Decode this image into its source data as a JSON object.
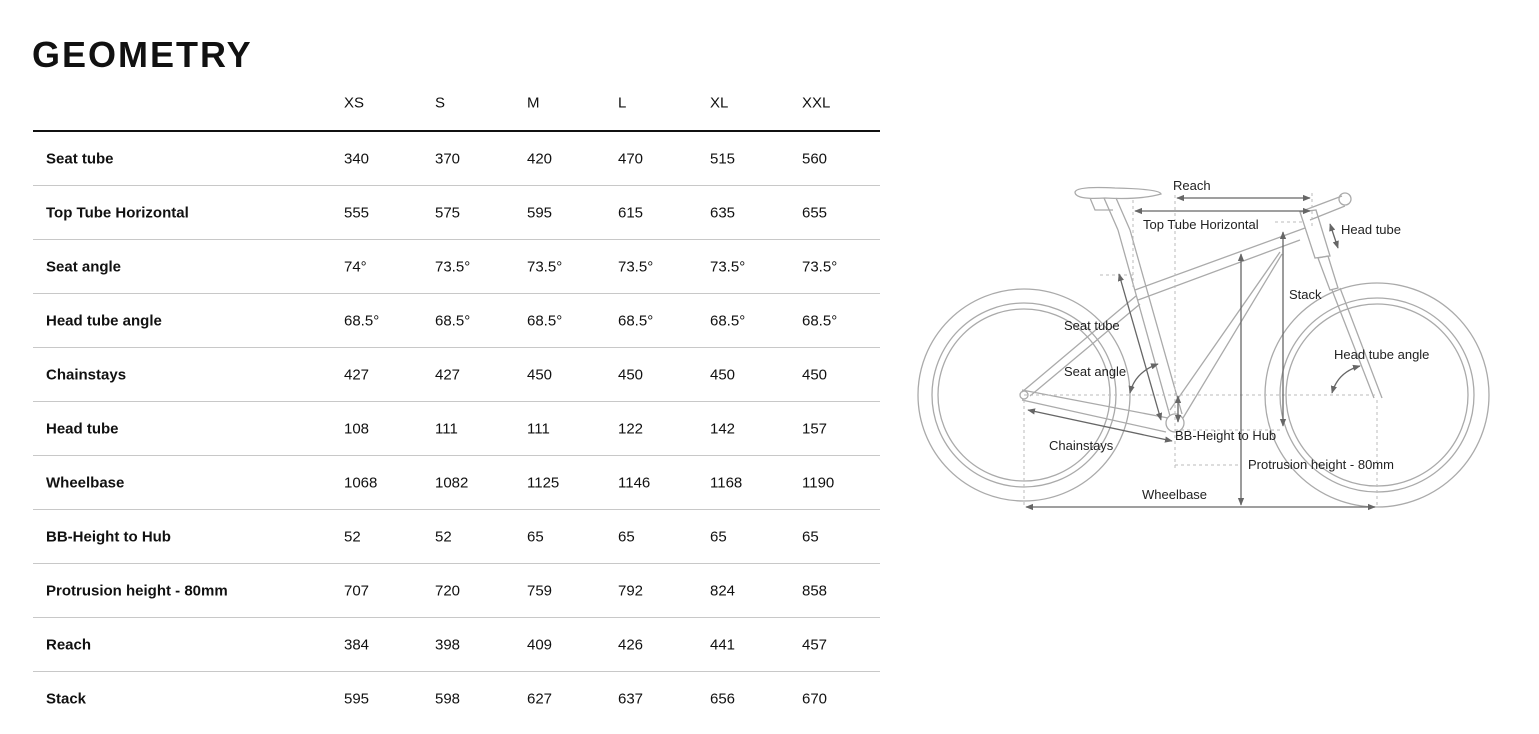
{
  "title": "GEOMETRY",
  "sizes": [
    "XS",
    "S",
    "M",
    "L",
    "XL",
    "XXL"
  ],
  "rows": [
    {
      "label": "Seat tube",
      "values": [
        "340",
        "370",
        "420",
        "470",
        "515",
        "560"
      ]
    },
    {
      "label": "Top Tube Horizontal",
      "values": [
        "555",
        "575",
        "595",
        "615",
        "635",
        "655"
      ]
    },
    {
      "label": "Seat angle",
      "values": [
        "74°",
        "73.5°",
        "73.5°",
        "73.5°",
        "73.5°",
        "73.5°"
      ]
    },
    {
      "label": "Head tube angle",
      "values": [
        "68.5°",
        "68.5°",
        "68.5°",
        "68.5°",
        "68.5°",
        "68.5°"
      ]
    },
    {
      "label": "Chainstays",
      "values": [
        "427",
        "427",
        "450",
        "450",
        "450",
        "450"
      ]
    },
    {
      "label": "Head tube",
      "values": [
        "108",
        "111",
        "111",
        "122",
        "142",
        "157"
      ]
    },
    {
      "label": "Wheelbase",
      "values": [
        "1068",
        "1082",
        "1125",
        "1146",
        "1168",
        "1190"
      ]
    },
    {
      "label": "BB-Height to Hub",
      "values": [
        "52",
        "52",
        "65",
        "65",
        "65",
        "65"
      ]
    },
    {
      "label": "Protrusion height - 80mm",
      "values": [
        "707",
        "720",
        "759",
        "792",
        "824",
        "858"
      ]
    },
    {
      "label": "Reach",
      "values": [
        "384",
        "398",
        "409",
        "426",
        "441",
        "457"
      ]
    },
    {
      "label": "Stack",
      "values": [
        "595",
        "598",
        "627",
        "637",
        "656",
        "670"
      ]
    }
  ],
  "diagram": {
    "reach": "Reach",
    "top_tube": "Top Tube Horizontal",
    "head_tube": "Head tube",
    "stack": "Stack",
    "seat_tube": "Seat tube",
    "seat_angle": "Seat angle",
    "head_tube_angle": "Head tube angle",
    "chainstays": "Chainstays",
    "bb_height": "BB-Height to Hub",
    "protrusion": "Protrusion height - 80mm",
    "wheelbase": "Wheelbase"
  }
}
